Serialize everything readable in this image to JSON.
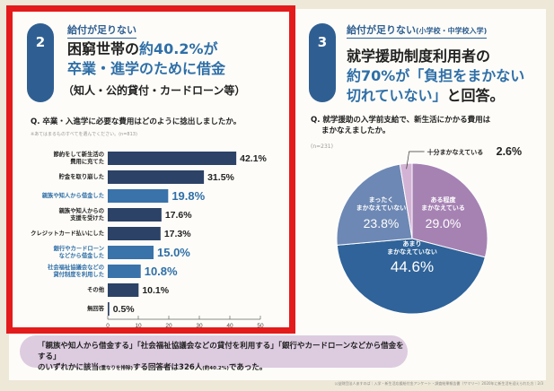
{
  "left": {
    "badge": "2",
    "kicker": "給付が足りない",
    "headline_1a": "困窮世帯の",
    "headline_1b": "約40.2%が",
    "headline_2": "卒業・進学のために借金",
    "headline_3": "（知人・公的貸付・カードローン等）",
    "question": "Q. 卒業・入進学に必要な費用はどのように捻出しましたか。",
    "note": "※あてはまるものすべてを選んでください。(n=813)"
  },
  "right": {
    "badge": "3",
    "kicker": "給付が足りない",
    "kicker_small": "(小学校・中学校入学)",
    "headline_1": "就学援助制度利用者の",
    "headline_2": "約70%が「負担をまかない",
    "headline_3a": "切れていない」",
    "headline_3b": "と回答。",
    "question_1": "Q. 就学援助の入学前支給で、新生活にかかる費用は",
    "question_2": "まかなえましたか。",
    "note": "(n=231)"
  },
  "chart_data": [
    {
      "type": "bar",
      "orientation": "horizontal",
      "categories": [
        "節約をして新生活の\n費用に充てた",
        "貯金を取り崩した",
        "親族や知人から借金した",
        "親族や知人からの\n支援を受けた",
        "クレジットカード払いにした",
        "銀行やカードローン\nなどから借金した",
        "社会福祉協議会などの\n貸付制度を利用した",
        "その他",
        "無回答"
      ],
      "values": [
        42.1,
        31.5,
        19.8,
        17.6,
        17.3,
        15.0,
        10.8,
        10.1,
        0.5
      ],
      "data_labels": [
        "42.1%",
        "31.5%",
        "19.8%",
        "17.6%",
        "17.3%",
        "15.0%",
        "10.8%",
        "10.1%",
        "0.5%"
      ],
      "highlighted": [
        false,
        false,
        true,
        false,
        false,
        true,
        true,
        false,
        false
      ],
      "xlim": [
        0,
        50
      ],
      "xticks": [
        "0",
        "10",
        "20",
        "30",
        "40",
        "50"
      ],
      "colors": {
        "normal": "#2c4266",
        "highlight": "#3a72aa"
      }
    },
    {
      "type": "pie",
      "slices": [
        {
          "label": "ある程度\nまかなえている",
          "value": 29.0,
          "text": "29.0%",
          "color": "#a682b3"
        },
        {
          "label": "あまり\nまかなえていない",
          "value": 44.6,
          "text": "44.6%",
          "color": "#2f6399"
        },
        {
          "label": "まったく\nまかなえていない",
          "value": 23.8,
          "text": "23.8%",
          "color": "#6d88b4"
        },
        {
          "label": "十分まかなえている",
          "value": 2.6,
          "text": "2.6%",
          "color": "#d3b3d5"
        }
      ]
    }
  ],
  "footnote": {
    "line1": "「親族や知人から借金する」「社会福祉協議会などの貸付を利用する」「銀行やカードローンなどから借金をする」",
    "line2a": "のいずれかに該当",
    "line2b": "(重なりを排除)",
    "line2c": "する回答者は326人",
    "line2d": "(約40.2%)",
    "line2e": "であった。"
  },
  "credit": "公益財団法人あすのば｜入学・新生活応援給付金アンケート・調査結果報告書（サマリー）2020年に新生活を迎えられた方｜2/3"
}
